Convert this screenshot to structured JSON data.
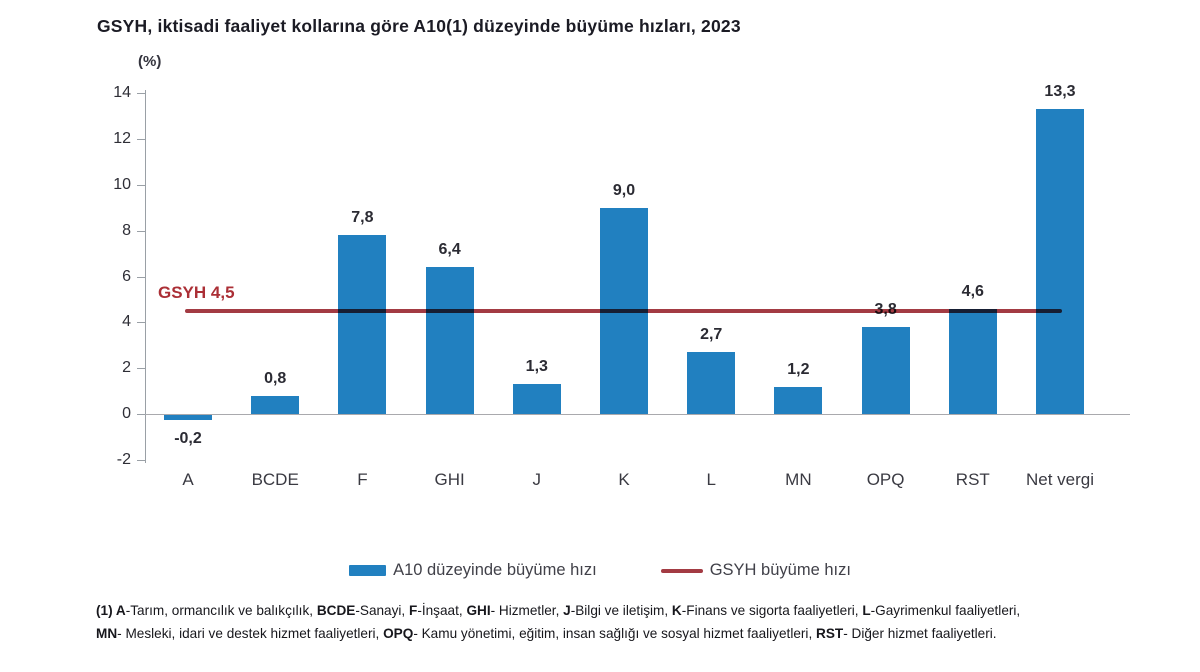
{
  "title": "GSYH, iktisadi faaliyet kollarına göre A10(1) düzeyinde büyüme hızları, 2023",
  "unit_label": "(%)",
  "chart_data": {
    "type": "bar",
    "title": "GSYH, iktisadi faaliyet kollarına göre A10(1) düzeyinde büyüme hızları, 2023",
    "ylabel": "(%)",
    "xlabel": "",
    "categories": [
      "A",
      "BCDE",
      "F",
      "GHI",
      "J",
      "K",
      "L",
      "MN",
      "OPQ",
      "RST",
      "Net vergi"
    ],
    "values": [
      -0.2,
      0.8,
      7.8,
      6.4,
      1.3,
      9.0,
      2.7,
      1.2,
      3.8,
      4.6,
      13.3
    ],
    "value_labels": [
      "-0,2",
      "0,8",
      "7,8",
      "6,4",
      "1,3",
      "9,0",
      "2,7",
      "1,2",
      "3,8",
      "4,6",
      "13,3"
    ],
    "ylim": [
      -2,
      14
    ],
    "yticks": [
      -2,
      0,
      2,
      4,
      6,
      8,
      10,
      12,
      14
    ],
    "grid": false,
    "legend_position": "bottom",
    "bar_color": "#2180c0",
    "reference_line": {
      "value": 4.5,
      "label": "GSYH 4,5",
      "color": "#a33b43",
      "label_color": "#ab2f36"
    }
  },
  "legend": [
    {
      "label": "A10 düzeyinde büyüme hızı",
      "swatch": "bar",
      "color": "#2180c0"
    },
    {
      "label": "GSYH büyüme hızı",
      "swatch": "line",
      "color": "#a33b43"
    }
  ],
  "footnote": {
    "lines": [
      [
        {
          "b": true,
          "t": "(1) A"
        },
        {
          "b": false,
          "t": "-Tarım, ormancılık ve balıkçılık, "
        },
        {
          "b": true,
          "t": "BCDE"
        },
        {
          "b": false,
          "t": "-Sanayi, "
        },
        {
          "b": true,
          "t": "F"
        },
        {
          "b": false,
          "t": "-İnşaat, "
        },
        {
          "b": true,
          "t": "GHI"
        },
        {
          "b": false,
          "t": "- Hizmetler, "
        },
        {
          "b": true,
          "t": "J"
        },
        {
          "b": false,
          "t": "-Bilgi ve iletişim, "
        },
        {
          "b": true,
          "t": "K"
        },
        {
          "b": false,
          "t": "-Finans ve sigorta faaliyetleri, "
        },
        {
          "b": true,
          "t": "L"
        },
        {
          "b": false,
          "t": "-Gayrimenkul faaliyetleri,"
        }
      ],
      [
        {
          "b": true,
          "t": "MN"
        },
        {
          "b": false,
          "t": "- Mesleki, idari ve destek hizmet faaliyetleri, "
        },
        {
          "b": true,
          "t": "OPQ"
        },
        {
          "b": false,
          "t": "- Kamu yönetimi, eğitim, insan sağlığı ve sosyal hizmet faaliyetleri, "
        },
        {
          "b": true,
          "t": "RST"
        },
        {
          "b": false,
          "t": "- Diğer hizmet faaliyetleri."
        }
      ]
    ]
  }
}
